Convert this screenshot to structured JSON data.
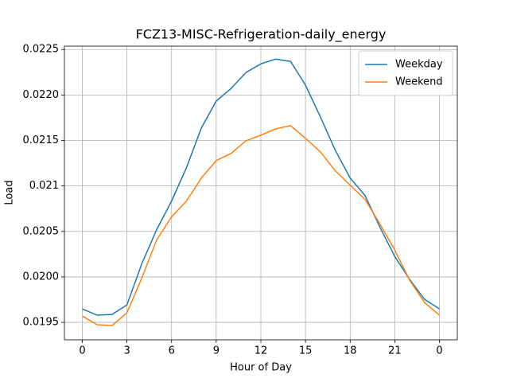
{
  "chart_data": {
    "type": "line",
    "title": "FCZ13-MISC-Refrigeration-daily_energy",
    "xlabel": "Hour of Day",
    "ylabel": "Load",
    "x": [
      0,
      1,
      2,
      3,
      4,
      5,
      6,
      7,
      8,
      9,
      10,
      11,
      12,
      13,
      14,
      15,
      16,
      17,
      18,
      19,
      20,
      21,
      22,
      23,
      24
    ],
    "series": [
      {
        "name": "Weekday",
        "color": "#1f77b4",
        "values": [
          0.019648,
          0.019579,
          0.019587,
          0.019692,
          0.020145,
          0.02052,
          0.020834,
          0.021201,
          0.021637,
          0.021933,
          0.022073,
          0.022247,
          0.022343,
          0.022395,
          0.022369,
          0.022108,
          0.021759,
          0.021392,
          0.021087,
          0.020895,
          0.020547,
          0.020224,
          0.019971,
          0.019753,
          0.019648
        ]
      },
      {
        "name": "Weekend",
        "color": "#ff7f0e",
        "values": [
          0.01957,
          0.019474,
          0.019465,
          0.019605,
          0.019988,
          0.020407,
          0.02066,
          0.020834,
          0.021087,
          0.021279,
          0.021358,
          0.021497,
          0.021558,
          0.021628,
          0.021663,
          0.021523,
          0.021375,
          0.021166,
          0.021009,
          0.020852,
          0.020581,
          0.020294,
          0.019962,
          0.019718,
          0.019579
        ]
      }
    ],
    "xlim": [
      -1.2,
      25.2
    ],
    "xticks": [
      0,
      3,
      6,
      9,
      12,
      15,
      18,
      21,
      {
        "value": 24,
        "label": "0"
      }
    ],
    "ylim": [
      0.019308,
      0.022537
    ],
    "yticks": [
      0.0195,
      {
        "value": 0.02,
        "label": "0.0200"
      },
      0.0205,
      0.021,
      0.0215,
      {
        "value": 0.022,
        "label": "0.0220"
      },
      0.0225
    ],
    "grid": true,
    "legend": "upper right"
  }
}
